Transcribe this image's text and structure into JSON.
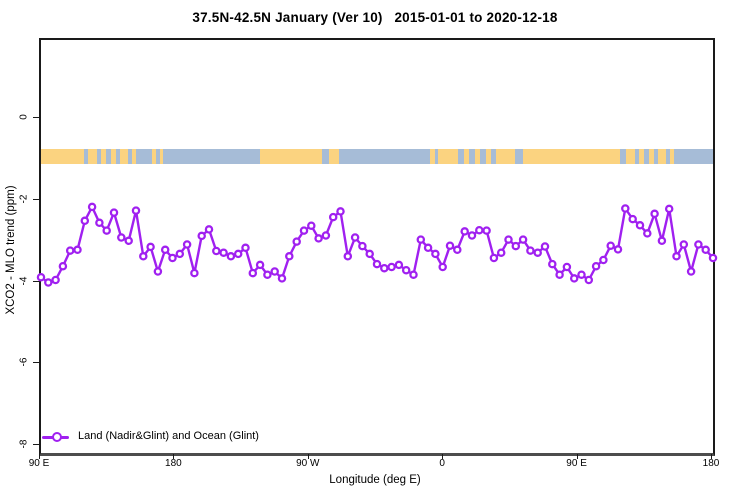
{
  "title": "37.5N-42.5N January (Ver 10)   2015-01-01 to 2020-12-18",
  "colors": {
    "series_purple": "#A020F0",
    "land_orange": "#FBD380",
    "ocean_blue": "#A6BCD7",
    "axis_black": "#1a1a1a",
    "baseline_gray": "#4d4d4d"
  },
  "axes": {
    "x": {
      "label": "Longitude (deg E)",
      "ticks": [
        "90 E",
        "180",
        "90 W",
        "0",
        "90 E",
        "180"
      ]
    },
    "y": {
      "label": "XCO2 - MLO trend (ppm)",
      "ticks": [
        "0",
        "-2",
        "-4",
        "-6",
        "-8"
      ],
      "tick_values": [
        0,
        -2,
        -4,
        -6,
        -8
      ]
    }
  },
  "legend": {
    "label": "Land (Nadir&Glint) and Ocean (Glint)"
  },
  "map_band": {
    "description": "horizontal strip near -0.9 ppm showing land (orange) vs ocean (blue) along the 37.5N-42.5N latitude band as a function of longitude",
    "segments": [
      {
        "from": 0.0,
        "to": 0.064,
        "type": "land"
      },
      {
        "from": 0.064,
        "to": 0.0699,
        "type": "ocean"
      },
      {
        "from": 0.0699,
        "to": 0.0833,
        "type": "land"
      },
      {
        "from": 0.0833,
        "to": 0.0893,
        "type": "ocean"
      },
      {
        "from": 0.0893,
        "to": 0.0967,
        "type": "land"
      },
      {
        "from": 0.0967,
        "to": 0.1042,
        "type": "ocean"
      },
      {
        "from": 0.1042,
        "to": 0.1116,
        "type": "land"
      },
      {
        "from": 0.1116,
        "to": 0.1176,
        "type": "ocean"
      },
      {
        "from": 0.1176,
        "to": 0.1295,
        "type": "land"
      },
      {
        "from": 0.1295,
        "to": 0.1354,
        "type": "ocean"
      },
      {
        "from": 0.1354,
        "to": 0.1414,
        "type": "land"
      },
      {
        "from": 0.1414,
        "to": 0.1652,
        "type": "ocean"
      },
      {
        "from": 0.1652,
        "to": 0.1711,
        "type": "land"
      },
      {
        "from": 0.1711,
        "to": 0.1771,
        "type": "ocean"
      },
      {
        "from": 0.1771,
        "to": 0.1815,
        "type": "land"
      },
      {
        "from": 0.1815,
        "to": 0.3259,
        "type": "ocean"
      },
      {
        "from": 0.3259,
        "to": 0.4182,
        "type": "land"
      },
      {
        "from": 0.4182,
        "to": 0.4286,
        "type": "ocean"
      },
      {
        "from": 0.4286,
        "to": 0.4435,
        "type": "land"
      },
      {
        "from": 0.4435,
        "to": 0.5789,
        "type": "ocean"
      },
      {
        "from": 0.5789,
        "to": 0.5863,
        "type": "land"
      },
      {
        "from": 0.5863,
        "to": 0.5908,
        "type": "ocean"
      },
      {
        "from": 0.5908,
        "to": 0.6205,
        "type": "land"
      },
      {
        "from": 0.6205,
        "to": 0.6295,
        "type": "ocean"
      },
      {
        "from": 0.6295,
        "to": 0.6369,
        "type": "land"
      },
      {
        "from": 0.6369,
        "to": 0.6458,
        "type": "ocean"
      },
      {
        "from": 0.6458,
        "to": 0.6533,
        "type": "land"
      },
      {
        "from": 0.6533,
        "to": 0.6622,
        "type": "ocean"
      },
      {
        "from": 0.6622,
        "to": 0.6696,
        "type": "land"
      },
      {
        "from": 0.6696,
        "to": 0.6771,
        "type": "ocean"
      },
      {
        "from": 0.6771,
        "to": 0.7054,
        "type": "land"
      },
      {
        "from": 0.7054,
        "to": 0.7173,
        "type": "ocean"
      },
      {
        "from": 0.7173,
        "to": 0.8616,
        "type": "land"
      },
      {
        "from": 0.8616,
        "to": 0.8705,
        "type": "ocean"
      },
      {
        "from": 0.8705,
        "to": 0.8839,
        "type": "land"
      },
      {
        "from": 0.8839,
        "to": 0.8899,
        "type": "ocean"
      },
      {
        "from": 0.8899,
        "to": 0.8973,
        "type": "land"
      },
      {
        "from": 0.8973,
        "to": 0.9048,
        "type": "ocean"
      },
      {
        "from": 0.9048,
        "to": 0.9122,
        "type": "land"
      },
      {
        "from": 0.9122,
        "to": 0.9182,
        "type": "ocean"
      },
      {
        "from": 0.9182,
        "to": 0.9301,
        "type": "land"
      },
      {
        "from": 0.9301,
        "to": 0.936,
        "type": "ocean"
      },
      {
        "from": 0.936,
        "to": 0.942,
        "type": "land"
      },
      {
        "from": 0.942,
        "to": 1.0,
        "type": "ocean"
      }
    ]
  },
  "chart_data": {
    "type": "line",
    "title": "37.5N-42.5N January (Ver 10)   2015-01-01 to 2020-12-18",
    "xlabel": "Longitude (deg E)",
    "ylabel": "XCO2 - MLO trend (ppm)",
    "x_tick_labels": [
      "90 E",
      "180",
      "90 W",
      "0",
      "90 E",
      "180"
    ],
    "x_range_deg_east": [
      90,
      540
    ],
    "x_wraps_globe": true,
    "ylim": [
      -8.2,
      1.9
    ],
    "grid": false,
    "legend_position": "bottom-left inside plot",
    "marker": "open-circle",
    "series": [
      {
        "name": "Land (Nadir&Glint) and Ocean (Glint)",
        "color": "#A020F0",
        "values": [
          -3.87,
          -4.0,
          -3.94,
          -3.6,
          -3.22,
          -3.2,
          -2.49,
          -2.15,
          -2.54,
          -2.73,
          -2.29,
          -2.9,
          -2.98,
          -2.24,
          -3.36,
          -3.13,
          -3.73,
          -3.2,
          -3.4,
          -3.3,
          -3.07,
          -3.77,
          -2.86,
          -2.7,
          -3.23,
          -3.27,
          -3.36,
          -3.3,
          -3.15,
          -3.77,
          -3.57,
          -3.81,
          -3.73,
          -3.9,
          -3.36,
          -3.0,
          -2.73,
          -2.61,
          -2.92,
          -2.85,
          -2.4,
          -2.26,
          -3.36,
          -2.9,
          -3.11,
          -3.3,
          -3.55,
          -3.65,
          -3.62,
          -3.57,
          -3.7,
          -3.81,
          -2.95,
          -3.15,
          -3.3,
          -3.62,
          -3.1,
          -3.2,
          -2.75,
          -2.85,
          -2.72,
          -2.73,
          -3.4,
          -3.27,
          -2.95,
          -3.11,
          -2.95,
          -3.22,
          -3.27,
          -3.12,
          -3.55,
          -3.81,
          -3.62,
          -3.9,
          -3.81,
          -3.94,
          -3.6,
          -3.45,
          -3.1,
          -3.19,
          -2.19,
          -2.45,
          -2.6,
          -2.8,
          -2.32,
          -2.98,
          -2.2,
          -3.36,
          -3.07,
          -3.73,
          -3.07,
          -3.2,
          -3.4
        ]
      }
    ]
  }
}
